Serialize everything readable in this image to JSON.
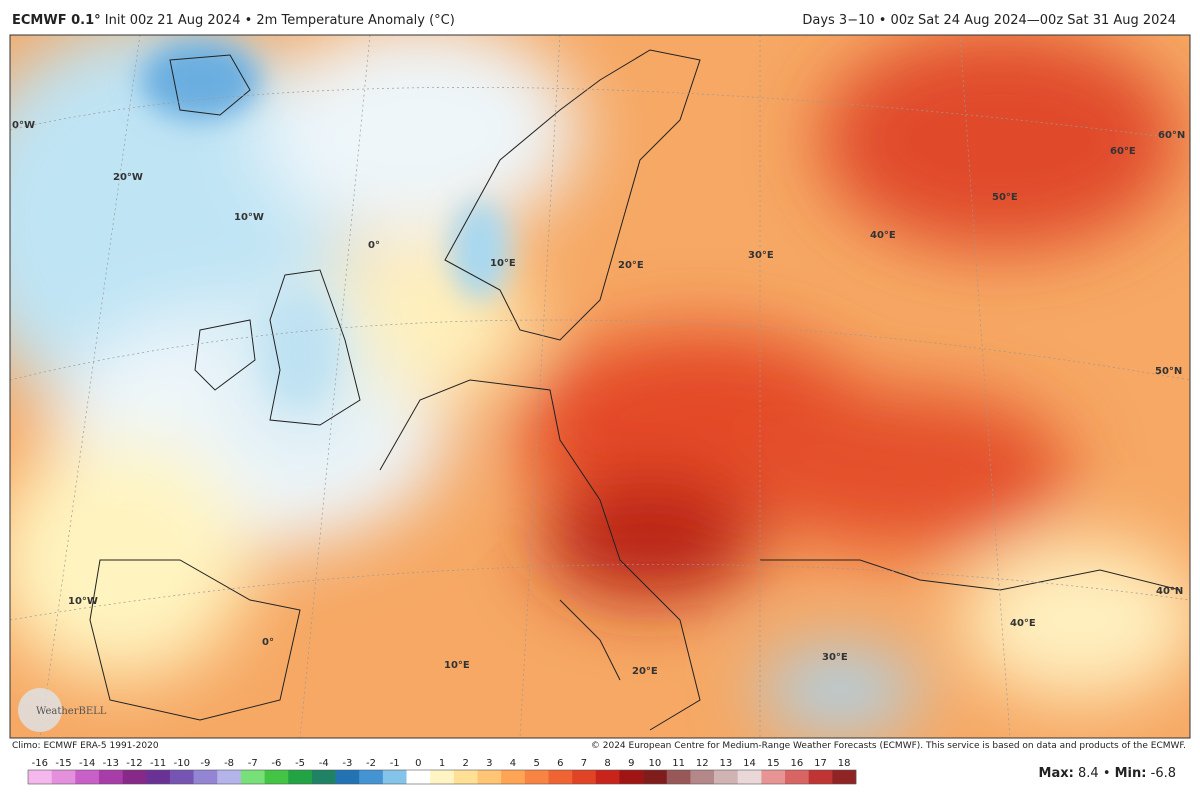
{
  "header": {
    "model": "ECMWF 0.1°",
    "left": "Init 00z 21 Aug 2024 • 2m Temperature Anomaly (°C)",
    "right": "Days 3−10 • 00z Sat 24 Aug 2024—00z Sat 31 Aug 2024"
  },
  "map": {
    "grid_labels": [
      "0°W",
      "20°W",
      "10°W",
      "0°",
      "10°E",
      "20°E",
      "30°E",
      "40°E",
      "50°E",
      "60°E",
      "60°N",
      "50°N",
      "40°N",
      "10°W",
      "0°",
      "10°E",
      "20°E",
      "30°E",
      "40°E"
    ],
    "logo": "WeatherBELL"
  },
  "footer": {
    "climo": "Climo: ECMWF ERA-5 1991-2020",
    "copyright": "© 2024 European Centre for Medium-Range Weather Forecasts (ECMWF). This service is based on data and products of the ECMWF."
  },
  "colorbar": {
    "ticks": [
      -16,
      -15,
      -14,
      -13,
      -12,
      -11,
      -10,
      -9,
      -8,
      -7,
      -6,
      -5,
      -4,
      -3,
      -2,
      -1,
      0,
      1,
      2,
      3,
      4,
      5,
      6,
      7,
      8,
      9,
      10,
      11,
      12,
      13,
      14,
      15,
      16,
      17,
      18
    ],
    "colors": [
      "#f4b8ec",
      "#e490dc",
      "#c860c8",
      "#a83ca8",
      "#882888",
      "#6a3296",
      "#7654b4",
      "#9484d4",
      "#b4b4ea",
      "#78e078",
      "#44c444",
      "#22a444",
      "#208264",
      "#2272b4",
      "#4494d4",
      "#84c4ea",
      "#ffffff",
      "#fff4c4",
      "#ffe094",
      "#ffc474",
      "#ffa454",
      "#f88444",
      "#f06434",
      "#e04424",
      "#c8241c",
      "#a01414",
      "#801c1c",
      "#985858",
      "#b48888",
      "#d0b4b4",
      "#ead8d8",
      "#e89494",
      "#d86464",
      "#c03434",
      "#902424"
    ]
  },
  "stats": {
    "max_label": "Max:",
    "max": 8.4,
    "separator": "•",
    "min_label": "Min:",
    "min": -6.8
  }
}
